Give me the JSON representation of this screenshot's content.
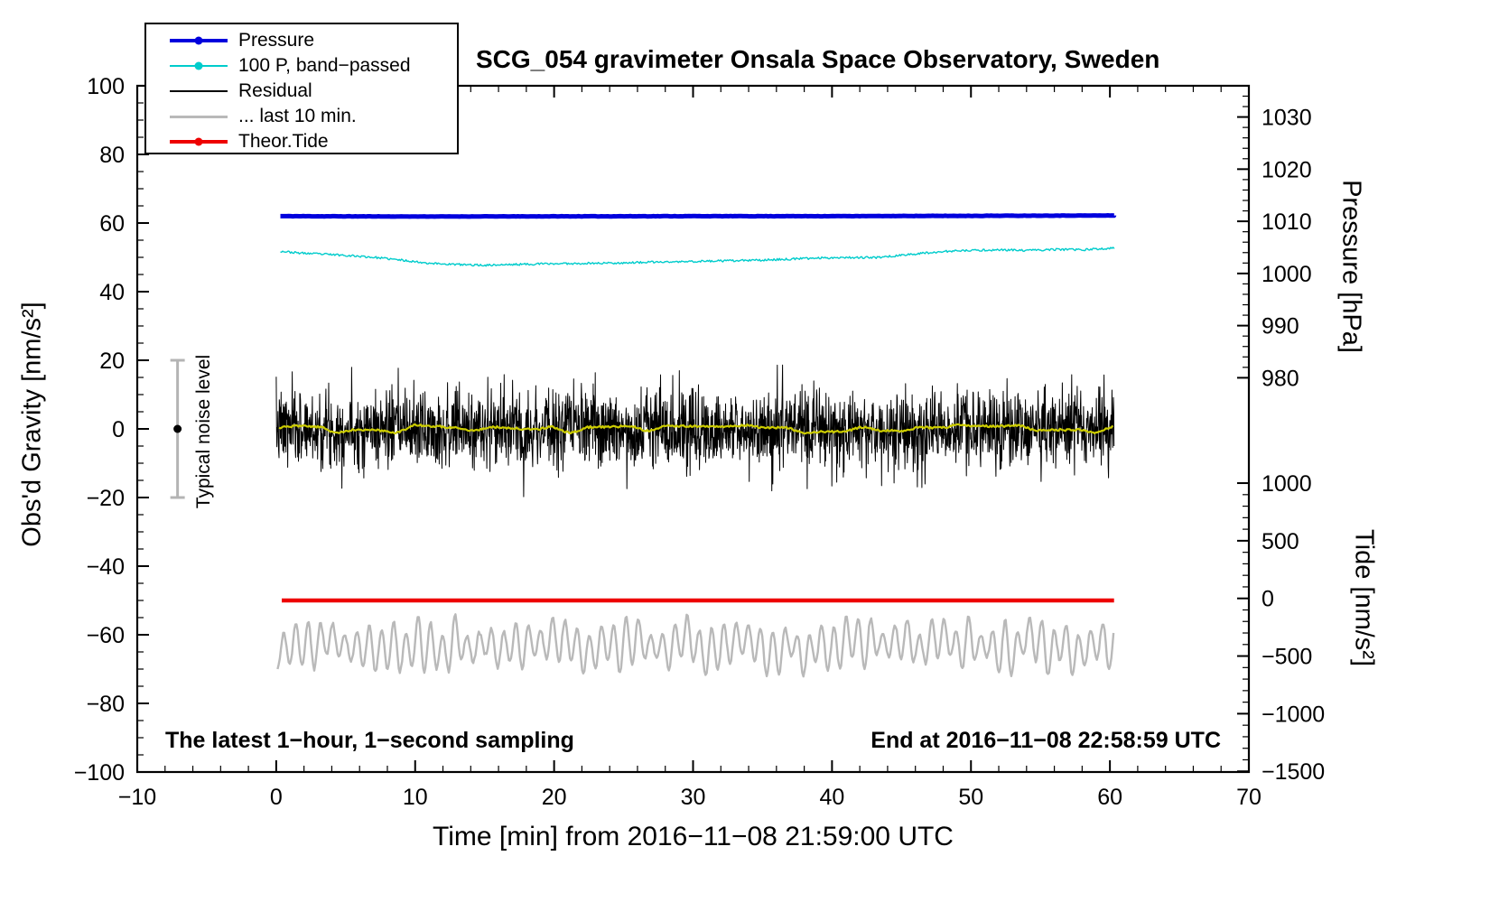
{
  "chart_data": {
    "type": "line",
    "title": "SCG_054 gravimeter Onsala Space Observatory, Sweden",
    "xlabel": "Time [min] from 2016−11−08 21:59:00 UTC",
    "ylabel_left": "Obs'd Gravity [nm/s²]",
    "ylabel_pressure": "Pressure [hPa]",
    "ylabel_tide": "Tide [nm/s²]",
    "annotations": {
      "bottom_left": "The latest 1−hour, 1−second sampling",
      "bottom_right": "End at 2016−11−08 22:58:59 UTC",
      "noise_label": "Typical noise level"
    },
    "xlim": [
      -10,
      70
    ],
    "ylim_left": [
      -100,
      100
    ],
    "x_major_step": 10,
    "x_minor_step": 2,
    "y_major_step": 20,
    "y_minor_step": 5,
    "grid": false,
    "x_ticks": [
      {
        "v": -10,
        "label": "−10"
      },
      {
        "v": 0,
        "label": "0"
      },
      {
        "v": 10,
        "label": "10"
      },
      {
        "v": 20,
        "label": "20"
      },
      {
        "v": 30,
        "label": "30"
      },
      {
        "v": 40,
        "label": "40"
      },
      {
        "v": 50,
        "label": "50"
      },
      {
        "v": 60,
        "label": "60"
      },
      {
        "v": 70,
        "label": "70"
      }
    ],
    "y_ticks_left": [
      {
        "v": 100,
        "label": "100"
      },
      {
        "v": 80,
        "label": "80"
      },
      {
        "v": 60,
        "label": "60"
      },
      {
        "v": 40,
        "label": "40"
      },
      {
        "v": 20,
        "label": "20"
      },
      {
        "v": 0,
        "label": "0"
      },
      {
        "v": -20,
        "label": "−20"
      },
      {
        "v": -40,
        "label": "−40"
      },
      {
        "v": -60,
        "label": "−60"
      },
      {
        "v": -80,
        "label": "−80"
      },
      {
        "v": -100,
        "label": "−100"
      }
    ],
    "pressure_axis": {
      "side": "right-top",
      "hpa_ref": 1010,
      "left_ref": 60.5,
      "left_per_hpa": 1.52,
      "minor_step": 2,
      "minor_from": 972,
      "minor_to": 1034,
      "ticks": [
        {
          "hpa": 1030,
          "label": "1030"
        },
        {
          "hpa": 1020,
          "label": "1020"
        },
        {
          "hpa": 1010,
          "label": "1010"
        },
        {
          "hpa": 1000,
          "label": "1000"
        },
        {
          "hpa": 990,
          "label": "990"
        },
        {
          "hpa": 980,
          "label": "980"
        }
      ]
    },
    "tide_axis": {
      "side": "right-bottom",
      "left_ref": -49.4,
      "left_per_unit": 0.0336,
      "minor_step": 100,
      "minor_from": -1500,
      "minor_to": 1000,
      "ticks": [
        {
          "value": 1000,
          "label": "1000"
        },
        {
          "value": 500,
          "label": "500"
        },
        {
          "value": 0,
          "label": "0"
        },
        {
          "value": -500,
          "label": "−500"
        },
        {
          "value": -1000,
          "label": "−1000"
        },
        {
          "value": -1500,
          "label": "−1500"
        }
      ]
    },
    "noise_bar": {
      "x": -7.1,
      "center": 0,
      "half_range": 20
    },
    "legend": {
      "items": [
        {
          "label": "Pressure",
          "color": "#0000dd",
          "marker": true,
          "lw": 4
        },
        {
          "label": "100 P, band−passed",
          "color": "#00cccc",
          "marker": true,
          "lw": 2
        },
        {
          "label": "Residual",
          "color": "#000000",
          "marker": false,
          "lw": 2.5
        },
        {
          "label": "... last 10 min.",
          "color": "#b9b9b9",
          "marker": false,
          "lw": 3
        },
        {
          "label": "Theor.Tide",
          "color": "#ee0000",
          "marker": true,
          "lw": 3.5
        }
      ]
    },
    "series": [
      {
        "name": "band_passed_pressure",
        "legend": "100 P, band−passed",
        "color": "#00cccc",
        "width": 1.4,
        "gen": {
          "kind": "control",
          "seed": 23,
          "step": 0.08,
          "noise": 0.3
        },
        "points": [
          [
            0.3,
            51.8
          ],
          [
            1.5,
            51.3
          ],
          [
            3,
            51.0
          ],
          [
            5,
            50.6
          ],
          [
            7,
            50.0
          ],
          [
            9,
            49.2
          ],
          [
            11,
            48.3
          ],
          [
            13,
            47.9
          ],
          [
            15,
            47.7
          ],
          [
            17,
            47.9
          ],
          [
            19,
            48.1
          ],
          [
            21,
            48.2
          ],
          [
            23,
            48.3
          ],
          [
            25,
            48.4
          ],
          [
            27,
            48.6
          ],
          [
            29,
            48.7
          ],
          [
            31,
            48.9
          ],
          [
            33,
            49.0
          ],
          [
            35,
            49.2
          ],
          [
            37,
            49.5
          ],
          [
            39,
            49.8
          ],
          [
            41,
            50.0
          ],
          [
            43,
            49.9
          ],
          [
            45,
            50.6
          ],
          [
            46.5,
            51.2
          ],
          [
            48,
            51.7
          ],
          [
            50,
            52.0
          ],
          [
            52,
            52.2
          ],
          [
            54,
            52.0
          ],
          [
            56,
            52.3
          ],
          [
            58,
            52.2
          ],
          [
            60.3,
            52.7
          ]
        ]
      },
      {
        "name": "pressure",
        "legend": "Pressure",
        "color": "#0000dd",
        "width": 5,
        "approx_value_hpa": 1010,
        "gen": {
          "kind": "control",
          "seed": 11,
          "step": 0.15,
          "noise": 0.05
        },
        "points": [
          [
            0.3,
            62.0
          ],
          [
            10,
            61.9
          ],
          [
            20,
            61.95
          ],
          [
            30,
            62.0
          ],
          [
            40,
            62.0
          ],
          [
            50,
            62.1
          ],
          [
            60.3,
            62.2
          ]
        ]
      },
      {
        "name": "residual",
        "legend": "Residual",
        "color": "#000000",
        "width": 1,
        "baseline": 0,
        "approx_range": [
          -20,
          20
        ],
        "x_range": [
          0,
          60.3
        ],
        "gen": {
          "kind": "gauss",
          "seed": 7,
          "n": 2412,
          "std": 5.5,
          "clip": 20
        }
      },
      {
        "name": "residual_smoothed",
        "legend": "",
        "color": "#cccc00",
        "width": 2.2,
        "baseline": 0,
        "x_range": [
          0.2,
          60.3
        ],
        "gen": {
          "kind": "smooth",
          "seed": 31,
          "ctrl_step": 1.4,
          "amp": 1.2,
          "jitter": 0.3,
          "step": 0.1,
          "alternate": false
        }
      },
      {
        "name": "residual_last_10_min",
        "legend": "... last 10 min.",
        "color": "#b9b9b9",
        "width": 2.4,
        "baseline": -63,
        "x_range": [
          0.1,
          60.3
        ],
        "gen": {
          "kind": "smooth",
          "seed": 47,
          "ctrl_step": 0.44,
          "amp": 9,
          "jitter": 0.5,
          "step": 0.08,
          "alternate": true
        }
      },
      {
        "name": "theor_tide",
        "legend": "Theor.Tide",
        "color": "#ee0000",
        "width": 4.5,
        "approx_value_tide": 0,
        "gen": {
          "kind": "plain"
        },
        "points": [
          [
            0.4,
            -50
          ],
          [
            60.3,
            -50
          ]
        ]
      }
    ]
  }
}
